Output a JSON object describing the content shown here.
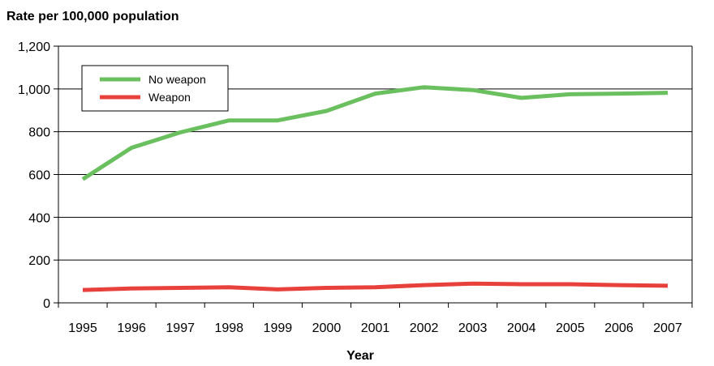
{
  "chart_data": {
    "type": "line",
    "title": "",
    "ylabel": "Rate per 100,000 population",
    "xlabel": "Year",
    "categories": [
      "1995",
      "1996",
      "1997",
      "1998",
      "1999",
      "2000",
      "2001",
      "2002",
      "2003",
      "2004",
      "2005",
      "2006",
      "2007"
    ],
    "ylim": [
      0,
      1200
    ],
    "yticks": [
      0,
      200,
      400,
      600,
      800,
      1000,
      1200
    ],
    "ytick_labels": [
      "0",
      "200",
      "400",
      "600",
      "800",
      "1,000",
      "1,200"
    ],
    "grid": "horizontal",
    "legend_position": "top-left",
    "series": [
      {
        "name": "No weapon",
        "color": "#6abf5e",
        "values": [
          578,
          725,
          797,
          853,
          853,
          897,
          978,
          1008,
          995,
          958,
          975,
          978,
          982
        ]
      },
      {
        "name": "Weapon",
        "color": "#e8413c",
        "values": [
          60,
          67,
          70,
          73,
          63,
          70,
          73,
          83,
          90,
          87,
          87,
          83,
          80
        ]
      }
    ]
  }
}
